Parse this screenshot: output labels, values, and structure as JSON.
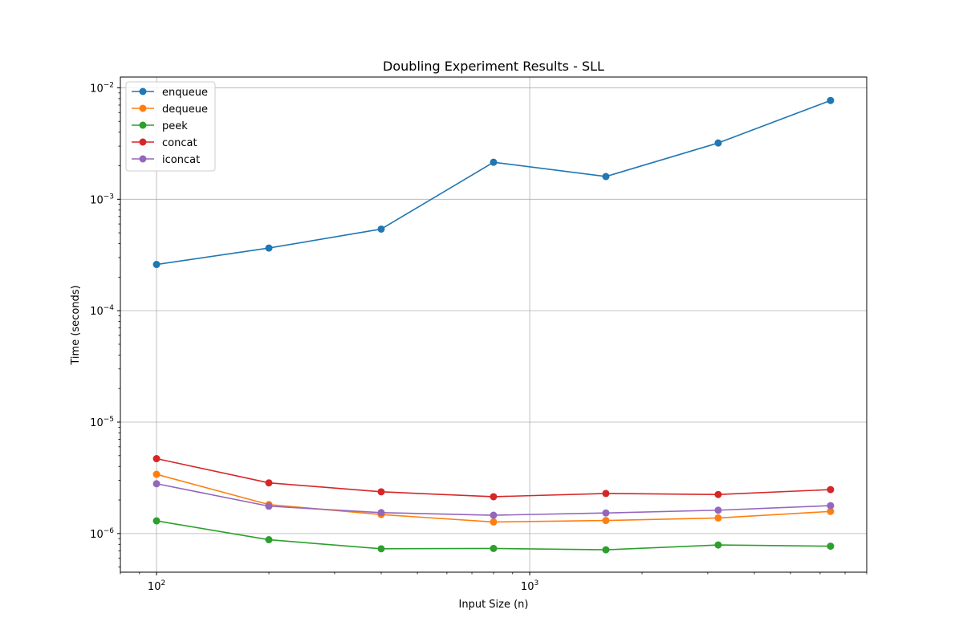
{
  "chart_data": {
    "type": "line",
    "title": "Doubling Experiment Results - SLL",
    "xlabel": "Input Size (n)",
    "ylabel": "Time (seconds)",
    "xscale": "log",
    "yscale": "log",
    "xlim": [
      80,
      8000
    ],
    "ylim": [
      4.5e-07,
      0.0125
    ],
    "grid": true,
    "legend_position": "top-left",
    "x": [
      100,
      200,
      400,
      800,
      1600,
      3200,
      6400
    ],
    "x_major_ticks": [
      {
        "value": 100,
        "base": "10",
        "exp": "2"
      },
      {
        "value": 1000,
        "base": "10",
        "exp": "3"
      }
    ],
    "y_major_ticks": [
      {
        "value": 1e-06,
        "base": "10",
        "exp": "−6"
      },
      {
        "value": 1e-05,
        "base": "10",
        "exp": "−5"
      },
      {
        "value": 0.0001,
        "base": "10",
        "exp": "−4"
      },
      {
        "value": 0.001,
        "base": "10",
        "exp": "−3"
      },
      {
        "value": 0.01,
        "base": "10",
        "exp": "−2"
      }
    ],
    "series": [
      {
        "name": "enqueue",
        "color": "#1f77b4",
        "values": [
          0.00026,
          0.000365,
          0.00054,
          0.00215,
          0.0016,
          0.0032,
          0.0077
        ]
      },
      {
        "name": "dequeue",
        "color": "#ff7f0e",
        "values": [
          3.4e-06,
          1.82e-06,
          1.48e-06,
          1.27e-06,
          1.31e-06,
          1.38e-06,
          1.58e-06
        ]
      },
      {
        "name": "peek",
        "color": "#2ca02c",
        "values": [
          1.3e-06,
          8.8e-07,
          7.3e-07,
          7.35e-07,
          7.15e-07,
          7.9e-07,
          7.7e-07
        ]
      },
      {
        "name": "concat",
        "color": "#d62728",
        "values": [
          4.7e-06,
          2.85e-06,
          2.37e-06,
          2.14e-06,
          2.29e-06,
          2.24e-06,
          2.48e-06
        ]
      },
      {
        "name": "iconcat",
        "color": "#9467bd",
        "values": [
          2.8e-06,
          1.76e-06,
          1.54e-06,
          1.46e-06,
          1.53e-06,
          1.62e-06,
          1.78e-06
        ]
      }
    ]
  }
}
